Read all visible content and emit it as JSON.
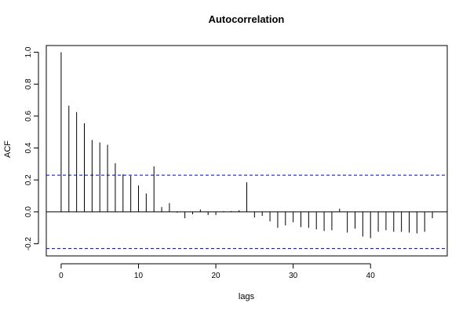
{
  "chart_data": {
    "type": "bar",
    "title": "Autocorrelation",
    "xlabel": "lags",
    "ylabel": "ACF",
    "xlim": [
      -1.92,
      49.92
    ],
    "ylim": [
      -0.276,
      1.042
    ],
    "xticks": [
      0,
      10,
      20,
      30,
      40
    ],
    "yticks": [
      -0.2,
      0.0,
      0.2,
      0.4,
      0.6,
      0.8,
      1.0
    ],
    "ytick_labels": [
      "-0.2",
      "0.0",
      "0.2",
      "0.4",
      "0.6",
      "0.8",
      "1.0"
    ],
    "confidence_bound": 0.23,
    "confidence_line_color": "#0000cc",
    "lags": [
      0,
      1,
      2,
      3,
      4,
      5,
      6,
      7,
      8,
      9,
      10,
      11,
      12,
      13,
      14,
      15,
      16,
      17,
      18,
      19,
      20,
      21,
      22,
      23,
      24,
      25,
      26,
      27,
      28,
      29,
      30,
      31,
      32,
      33,
      34,
      35,
      36,
      37,
      38,
      39,
      40,
      41,
      42,
      43,
      44,
      45,
      46,
      47,
      48
    ],
    "values": [
      1.0,
      0.665,
      0.625,
      0.555,
      0.45,
      0.435,
      0.42,
      0.305,
      0.235,
      0.225,
      0.165,
      0.115,
      0.285,
      0.03,
      0.055,
      -0.005,
      -0.04,
      -0.015,
      0.015,
      -0.02,
      -0.02,
      0.005,
      0.005,
      0.01,
      0.185,
      -0.035,
      -0.025,
      -0.06,
      -0.1,
      -0.085,
      -0.065,
      -0.095,
      -0.1,
      -0.11,
      -0.12,
      -0.115,
      0.02,
      -0.13,
      -0.105,
      -0.155,
      -0.165,
      -0.125,
      -0.115,
      -0.125,
      -0.125,
      -0.13,
      -0.135,
      -0.125,
      -0.04
    ]
  }
}
